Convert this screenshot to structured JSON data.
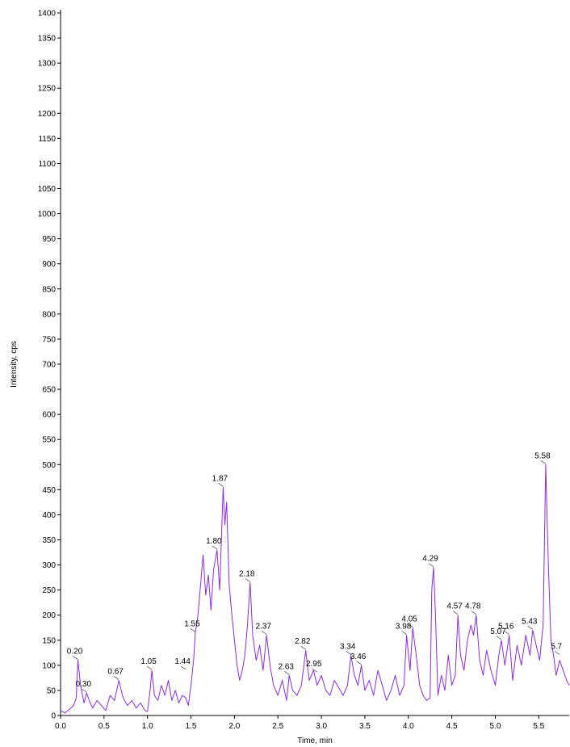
{
  "chart_data": {
    "type": "line",
    "xlabel": "Time, min",
    "ylabel": "Intensity, cps",
    "xlim": [
      0.0,
      5.85
    ],
    "ylim": [
      0,
      1400
    ],
    "x_ticks": [
      0.0,
      0.5,
      1.0,
      1.5,
      2.0,
      2.5,
      3.0,
      3.5,
      4.0,
      4.5,
      5.0,
      5.5
    ],
    "x_tick_labels": [
      "0.0",
      "0.5",
      "1.0",
      "1.5",
      "2.0",
      "2.5",
      "3.0",
      "3.5",
      "4.0",
      "4.5",
      "5.0",
      "5.5"
    ],
    "y_ticks": [
      0,
      50,
      100,
      150,
      200,
      250,
      300,
      350,
      400,
      450,
      500,
      550,
      600,
      650,
      700,
      750,
      800,
      850,
      900,
      950,
      1000,
      1050,
      1100,
      1150,
      1200,
      1250,
      1300,
      1350,
      1400
    ],
    "y_tick_labels": [
      "0",
      "50",
      "100",
      "150",
      "200",
      "250",
      "300",
      "350",
      "400",
      "450",
      "500",
      "550",
      "600",
      "650",
      "700",
      "750",
      "800",
      "850",
      "900",
      "950",
      "1000",
      "1050",
      "1100",
      "1150",
      "1200",
      "1250",
      "1300",
      "1350",
      "1400"
    ],
    "grid": false,
    "line_color": "#8a2be2",
    "series": [
      {
        "name": "",
        "x": [
          0.0,
          0.05,
          0.1,
          0.15,
          0.18,
          0.2,
          0.23,
          0.27,
          0.3,
          0.33,
          0.37,
          0.42,
          0.47,
          0.52,
          0.57,
          0.62,
          0.67,
          0.72,
          0.77,
          0.82,
          0.87,
          0.92,
          0.97,
          1.0,
          1.03,
          1.05,
          1.08,
          1.12,
          1.16,
          1.2,
          1.24,
          1.28,
          1.32,
          1.36,
          1.4,
          1.44,
          1.47,
          1.5,
          1.53,
          1.55,
          1.58,
          1.61,
          1.64,
          1.67,
          1.7,
          1.73,
          1.76,
          1.8,
          1.83,
          1.85,
          1.87,
          1.89,
          1.91,
          1.94,
          1.97,
          2.0,
          2.03,
          2.06,
          2.09,
          2.12,
          2.15,
          2.18,
          2.21,
          2.25,
          2.29,
          2.33,
          2.37,
          2.41,
          2.45,
          2.5,
          2.55,
          2.6,
          2.63,
          2.67,
          2.72,
          2.77,
          2.82,
          2.86,
          2.91,
          2.95,
          3.0,
          3.05,
          3.1,
          3.15,
          3.2,
          3.25,
          3.3,
          3.34,
          3.38,
          3.42,
          3.46,
          3.5,
          3.55,
          3.6,
          3.65,
          3.7,
          3.75,
          3.8,
          3.85,
          3.9,
          3.95,
          3.98,
          4.02,
          4.05,
          4.09,
          4.13,
          4.17,
          4.21,
          4.25,
          4.27,
          4.29,
          4.31,
          4.34,
          4.38,
          4.42,
          4.46,
          4.5,
          4.54,
          4.57,
          4.6,
          4.64,
          4.68,
          4.72,
          4.75,
          4.78,
          4.82,
          4.86,
          4.9,
          4.95,
          5.0,
          5.04,
          5.07,
          5.11,
          5.16,
          5.2,
          5.25,
          5.3,
          5.35,
          5.4,
          5.43,
          5.47,
          5.51,
          5.55,
          5.58,
          5.61,
          5.64,
          5.67,
          5.7,
          5.74,
          5.78,
          5.82,
          5.85
        ],
        "values": [
          10,
          5,
          12,
          20,
          35,
          110,
          60,
          25,
          45,
          30,
          15,
          30,
          20,
          10,
          40,
          30,
          70,
          35,
          20,
          30,
          15,
          25,
          10,
          8,
          50,
          90,
          40,
          30,
          60,
          40,
          70,
          30,
          50,
          25,
          40,
          35,
          20,
          60,
          110,
          165,
          200,
          260,
          320,
          240,
          280,
          210,
          290,
          330,
          250,
          350,
          455,
          380,
          425,
          260,
          200,
          150,
          100,
          70,
          90,
          120,
          180,
          265,
          160,
          110,
          140,
          90,
          160,
          100,
          60,
          40,
          70,
          30,
          80,
          50,
          40,
          60,
          130,
          70,
          90,
          60,
          80,
          50,
          40,
          70,
          55,
          40,
          60,
          120,
          80,
          60,
          100,
          50,
          70,
          40,
          90,
          60,
          30,
          50,
          80,
          40,
          60,
          160,
          90,
          175,
          120,
          60,
          40,
          30,
          35,
          250,
          295,
          210,
          40,
          80,
          50,
          120,
          60,
          80,
          200,
          120,
          90,
          150,
          180,
          160,
          200,
          110,
          80,
          130,
          90,
          60,
          120,
          150,
          100,
          160,
          70,
          140,
          100,
          160,
          120,
          170,
          140,
          110,
          180,
          500,
          300,
          150,
          120,
          80,
          110,
          90,
          70,
          60
        ]
      }
    ],
    "annotations": [
      {
        "label": "0.20",
        "x": 0.2,
        "y": 110
      },
      {
        "label": "0.30",
        "x": 0.3,
        "y": 45
      },
      {
        "label": "0.67",
        "x": 0.67,
        "y": 70
      },
      {
        "label": "1.05",
        "x": 1.05,
        "y": 90
      },
      {
        "label": "1.44",
        "x": 1.44,
        "y": 90
      },
      {
        "label": "1.55",
        "x": 1.55,
        "y": 165
      },
      {
        "label": "1.80",
        "x": 1.8,
        "y": 330
      },
      {
        "label": "1.87",
        "x": 1.87,
        "y": 455
      },
      {
        "label": "2.18",
        "x": 2.18,
        "y": 265
      },
      {
        "label": "2.37",
        "x": 2.37,
        "y": 160
      },
      {
        "label": "2.63",
        "x": 2.63,
        "y": 80
      },
      {
        "label": "2.82",
        "x": 2.82,
        "y": 130
      },
      {
        "label": "2.95",
        "x": 2.95,
        "y": 85
      },
      {
        "label": "3.34",
        "x": 3.34,
        "y": 120
      },
      {
        "label": "3.46",
        "x": 3.46,
        "y": 100
      },
      {
        "label": "3.98",
        "x": 3.98,
        "y": 160
      },
      {
        "label": "4.05",
        "x": 4.05,
        "y": 175
      },
      {
        "label": "4.29",
        "x": 4.29,
        "y": 295
      },
      {
        "label": "4.57",
        "x": 4.57,
        "y": 200
      },
      {
        "label": "4.78",
        "x": 4.78,
        "y": 200
      },
      {
        "label": "5.07",
        "x": 5.07,
        "y": 150
      },
      {
        "label": "5.16",
        "x": 5.16,
        "y": 160
      },
      {
        "label": "5.43",
        "x": 5.43,
        "y": 170
      },
      {
        "label": "5.58",
        "x": 5.58,
        "y": 500
      },
      {
        "label": "5.7",
        "x": 5.74,
        "y": 120
      }
    ]
  }
}
